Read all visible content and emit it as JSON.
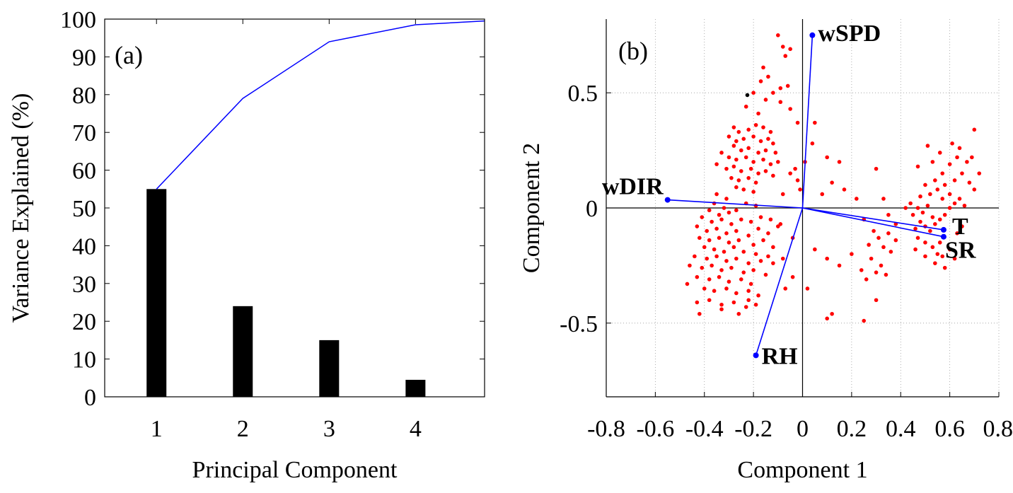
{
  "colors": {
    "bar": "#000000",
    "cumulative_line": "#0000ff",
    "biplot_vector": "#0000ff",
    "scores": "#ff0000",
    "highlight_point": "#000000"
  },
  "chart_data": [
    {
      "type": "bar",
      "panel_label": "(a)",
      "categories": [
        "1",
        "2",
        "3",
        "4"
      ],
      "values": [
        55,
        24,
        15,
        4.5
      ],
      "overlay_line": {
        "type": "line",
        "x": [
          1,
          2,
          3,
          4,
          4.8
        ],
        "values": [
          55,
          79,
          94,
          98.5,
          99.5
        ]
      },
      "xlabel": "Principal Component",
      "ylabel": "Variance Explained (%)",
      "xlim": [
        0.4,
        4.8
      ],
      "ylim": [
        0,
        100
      ],
      "yticks": [
        "0",
        "10",
        "20",
        "30",
        "40",
        "50",
        "60",
        "70",
        "80",
        "90",
        "100"
      ],
      "grid": false
    },
    {
      "type": "scatter",
      "subtype": "biplot",
      "panel_label": "(b)",
      "xlabel": "Component 1",
      "ylabel": "Component 2",
      "xlim": [
        -0.8,
        0.8
      ],
      "ylim": [
        -0.82,
        0.82
      ],
      "xticks": [
        "-0.8",
        "-0.6",
        "-0.4",
        "-0.2",
        "0",
        "0.2",
        "0.4",
        "0.6",
        "0.8"
      ],
      "yticks": [
        "-0.5",
        "0",
        "0.5"
      ],
      "grid": true,
      "vectors": [
        {
          "name": "wSPD",
          "x": 0.04,
          "y": 0.75
        },
        {
          "name": "wDIR",
          "x": -0.55,
          "y": 0.035
        },
        {
          "name": "T",
          "x": 0.575,
          "y": -0.095
        },
        {
          "name": "SR",
          "x": 0.575,
          "y": -0.125
        },
        {
          "name": "RH",
          "x": -0.19,
          "y": -0.64
        }
      ],
      "highlight_point": {
        "x": -0.225,
        "y": 0.49
      },
      "points": [
        [
          -0.1,
          0.75
        ],
        [
          -0.08,
          0.7
        ],
        [
          -0.07,
          0.66
        ],
        [
          -0.05,
          0.69
        ],
        [
          -0.16,
          0.61
        ],
        [
          -0.17,
          0.55
        ],
        [
          -0.14,
          0.57
        ],
        [
          -0.09,
          0.52
        ],
        [
          -0.06,
          0.53
        ],
        [
          -0.2,
          0.5
        ],
        [
          -0.23,
          0.44
        ],
        [
          -0.18,
          0.41
        ],
        [
          -0.05,
          0.43
        ],
        [
          -0.02,
          0.37
        ],
        [
          -0.28,
          0.35
        ],
        [
          -0.26,
          0.33
        ],
        [
          -0.22,
          0.34
        ],
        [
          -0.19,
          0.36
        ],
        [
          -0.16,
          0.35
        ],
        [
          -0.13,
          0.33
        ],
        [
          -0.3,
          0.31
        ],
        [
          -0.27,
          0.29
        ],
        [
          -0.24,
          0.3
        ],
        [
          -0.2,
          0.31
        ],
        [
          -0.17,
          0.29
        ],
        [
          -0.14,
          0.3
        ],
        [
          -0.12,
          0.28
        ],
        [
          -0.28,
          0.27
        ],
        [
          -0.25,
          0.25
        ],
        [
          -0.22,
          0.26
        ],
        [
          -0.18,
          0.24
        ],
        [
          -0.15,
          0.25
        ],
        [
          -0.11,
          0.24
        ],
        [
          -0.33,
          0.24
        ],
        [
          -0.3,
          0.22
        ],
        [
          -0.27,
          0.21
        ],
        [
          -0.23,
          0.22
        ],
        [
          -0.2,
          0.2
        ],
        [
          -0.16,
          0.21
        ],
        [
          -0.13,
          0.19
        ],
        [
          -0.1,
          0.2
        ],
        [
          -0.35,
          0.19
        ],
        [
          -0.31,
          0.17
        ],
        [
          -0.28,
          0.18
        ],
        [
          -0.25,
          0.16
        ],
        [
          -0.21,
          0.17
        ],
        [
          -0.18,
          0.15
        ],
        [
          -0.15,
          0.16
        ],
        [
          -0.29,
          0.13
        ],
        [
          -0.26,
          0.12
        ],
        [
          -0.22,
          0.13
        ],
        [
          -0.19,
          0.11
        ],
        [
          -0.12,
          0.14
        ],
        [
          -0.27,
          0.09
        ],
        [
          -0.24,
          0.08
        ],
        [
          -0.2,
          0.07
        ],
        [
          -0.35,
          0.06
        ],
        [
          -0.31,
          0.04
        ],
        [
          -0.36,
          0.02
        ],
        [
          -0.32,
          0.0
        ],
        [
          -0.38,
          -0.01
        ],
        [
          -0.34,
          -0.03
        ],
        [
          -0.3,
          -0.02
        ],
        [
          -0.27,
          -0.01
        ],
        [
          -0.23,
          0.02
        ],
        [
          -0.19,
          0.01
        ],
        [
          -0.41,
          -0.04
        ],
        [
          -0.37,
          -0.06
        ],
        [
          -0.33,
          -0.05
        ],
        [
          -0.29,
          -0.07
        ],
        [
          -0.25,
          -0.05
        ],
        [
          -0.21,
          -0.06
        ],
        [
          -0.17,
          -0.04
        ],
        [
          -0.13,
          -0.05
        ],
        [
          -0.09,
          -0.07
        ],
        [
          -0.43,
          -0.08
        ],
        [
          -0.39,
          -0.1
        ],
        [
          -0.35,
          -0.09
        ],
        [
          -0.31,
          -0.11
        ],
        [
          -0.27,
          -0.1
        ],
        [
          -0.22,
          -0.12
        ],
        [
          -0.18,
          -0.09
        ],
        [
          -0.14,
          -0.11
        ],
        [
          -0.1,
          -0.08
        ],
        [
          -0.42,
          -0.13
        ],
        [
          -0.38,
          -0.14
        ],
        [
          -0.34,
          -0.13
        ],
        [
          -0.3,
          -0.15
        ],
        [
          -0.26,
          -0.14
        ],
        [
          -0.2,
          -0.16
        ],
        [
          -0.16,
          -0.14
        ],
        [
          -0.12,
          -0.17
        ],
        [
          -0.4,
          -0.17
        ],
        [
          -0.36,
          -0.18
        ],
        [
          -0.32,
          -0.19
        ],
        [
          -0.28,
          -0.17
        ],
        [
          -0.24,
          -0.19
        ],
        [
          -0.19,
          -0.2
        ],
        [
          -0.14,
          -0.21
        ],
        [
          -0.44,
          -0.21
        ],
        [
          -0.39,
          -0.22
        ],
        [
          -0.35,
          -0.21
        ],
        [
          -0.31,
          -0.23
        ],
        [
          -0.27,
          -0.22
        ],
        [
          -0.22,
          -0.24
        ],
        [
          -0.17,
          -0.23
        ],
        [
          -0.12,
          -0.24
        ],
        [
          -0.08,
          -0.22
        ],
        [
          -0.46,
          -0.25
        ],
        [
          -0.41,
          -0.26
        ],
        [
          -0.37,
          -0.25
        ],
        [
          -0.33,
          -0.27
        ],
        [
          -0.29,
          -0.26
        ],
        [
          -0.24,
          -0.28
        ],
        [
          -0.2,
          -0.27
        ],
        [
          -0.15,
          -0.29
        ],
        [
          -0.43,
          -0.3
        ],
        [
          -0.38,
          -0.31
        ],
        [
          -0.34,
          -0.3
        ],
        [
          -0.3,
          -0.32
        ],
        [
          -0.25,
          -0.31
        ],
        [
          -0.21,
          -0.33
        ],
        [
          -0.47,
          -0.33
        ],
        [
          -0.4,
          -0.35
        ],
        [
          -0.36,
          -0.36
        ],
        [
          -0.31,
          -0.35
        ],
        [
          -0.27,
          -0.37
        ],
        [
          -0.22,
          -0.36
        ],
        [
          -0.18,
          -0.38
        ],
        [
          -0.43,
          -0.41
        ],
        [
          -0.38,
          -0.4
        ],
        [
          -0.33,
          -0.42
        ],
        [
          -0.28,
          -0.41
        ],
        [
          -0.23,
          -0.43
        ],
        [
          -0.19,
          -0.42
        ],
        [
          -0.42,
          -0.46
        ],
        [
          -0.33,
          -0.44
        ],
        [
          -0.26,
          -0.46
        ],
        [
          -0.22,
          -0.4
        ],
        [
          -0.07,
          -0.35
        ],
        [
          -0.04,
          -0.3
        ],
        [
          0.12,
          -0.46
        ],
        [
          0.1,
          -0.48
        ],
        [
          0.25,
          -0.49
        ],
        [
          0.02,
          -0.35
        ],
        [
          -0.08,
          0.06
        ],
        [
          -0.05,
          0.15
        ],
        [
          -0.03,
          0.17
        ],
        [
          -0.02,
          0.12
        ],
        [
          -0.01,
          0.08
        ],
        [
          0.01,
          0.2
        ],
        [
          0.04,
          0.28
        ],
        [
          0.05,
          0.37
        ],
        [
          0.08,
          0.06
        ],
        [
          0.1,
          0.22
        ],
        [
          0.12,
          0.11
        ],
        [
          0.15,
          0.2
        ],
        [
          0.17,
          0.08
        ],
        [
          0.22,
          0.04
        ],
        [
          0.25,
          -0.05
        ],
        [
          0.3,
          0.17
        ],
        [
          0.31,
          -0.13
        ],
        [
          0.33,
          0.04
        ],
        [
          0.35,
          -0.03
        ],
        [
          0.38,
          -0.07
        ],
        [
          -0.04,
          -0.13
        ],
        [
          0.05,
          -0.18
        ],
        [
          0.1,
          -0.22
        ],
        [
          0.15,
          -0.25
        ],
        [
          0.2,
          -0.2
        ],
        [
          0.24,
          -0.27
        ],
        [
          0.26,
          -0.31
        ],
        [
          0.28,
          -0.22
        ],
        [
          0.3,
          -0.28
        ],
        [
          0.32,
          -0.25
        ],
        [
          0.34,
          -0.29
        ],
        [
          0.3,
          -0.4
        ],
        [
          0.36,
          -0.19
        ],
        [
          0.38,
          -0.14
        ],
        [
          0.27,
          -0.16
        ],
        [
          0.29,
          -0.1
        ],
        [
          0.33,
          -0.17
        ],
        [
          0.35,
          -0.11
        ],
        [
          0.45,
          -0.03
        ],
        [
          0.47,
          0.0
        ],
        [
          0.49,
          -0.02
        ],
        [
          0.51,
          0.01
        ],
        [
          0.53,
          -0.04
        ],
        [
          0.48,
          -0.06
        ],
        [
          0.46,
          -0.09
        ],
        [
          0.5,
          -0.08
        ],
        [
          0.52,
          -0.1
        ],
        [
          0.54,
          -0.07
        ],
        [
          0.56,
          -0.05
        ],
        [
          0.58,
          -0.03
        ],
        [
          0.6,
          0.0
        ],
        [
          0.62,
          0.02
        ],
        [
          0.64,
          0.04
        ],
        [
          0.6,
          0.06
        ],
        [
          0.57,
          0.04
        ],
        [
          0.55,
          0.08
        ],
        [
          0.52,
          0.06
        ],
        [
          0.58,
          0.1
        ],
        [
          0.62,
          0.12
        ],
        [
          0.65,
          0.15
        ],
        [
          0.68,
          0.11
        ],
        [
          0.7,
          0.08
        ],
        [
          0.72,
          0.15
        ],
        [
          0.67,
          0.2
        ],
        [
          0.63,
          0.22
        ],
        [
          0.6,
          0.19
        ],
        [
          0.57,
          0.15
        ],
        [
          0.54,
          0.12
        ],
        [
          0.5,
          0.1
        ],
        [
          0.48,
          0.05
        ],
        [
          0.53,
          0.2
        ],
        [
          0.56,
          0.24
        ],
        [
          0.61,
          0.28
        ],
        [
          0.64,
          0.26
        ],
        [
          0.66,
          0.01
        ],
        [
          0.69,
          0.22
        ],
        [
          0.7,
          0.34
        ],
        [
          0.47,
          0.18
        ],
        [
          0.44,
          0.02
        ],
        [
          0.42,
          0.0
        ],
        [
          0.47,
          -0.13
        ],
        [
          0.5,
          -0.15
        ],
        [
          0.53,
          -0.17
        ],
        [
          0.56,
          -0.15
        ],
        [
          0.55,
          -0.2
        ],
        [
          0.57,
          -0.21
        ],
        [
          0.6,
          -0.18
        ],
        [
          0.63,
          -0.11
        ],
        [
          0.65,
          -0.08
        ],
        [
          0.62,
          -0.22
        ],
        [
          0.58,
          -0.26
        ],
        [
          0.54,
          -0.24
        ],
        [
          0.51,
          0.27
        ],
        [
          0.46,
          -0.18
        ],
        [
          0.5,
          -0.21
        ],
        [
          -0.12,
          0.5
        ],
        [
          -0.15,
          0.47
        ],
        [
          -0.09,
          0.46
        ]
      ]
    }
  ]
}
